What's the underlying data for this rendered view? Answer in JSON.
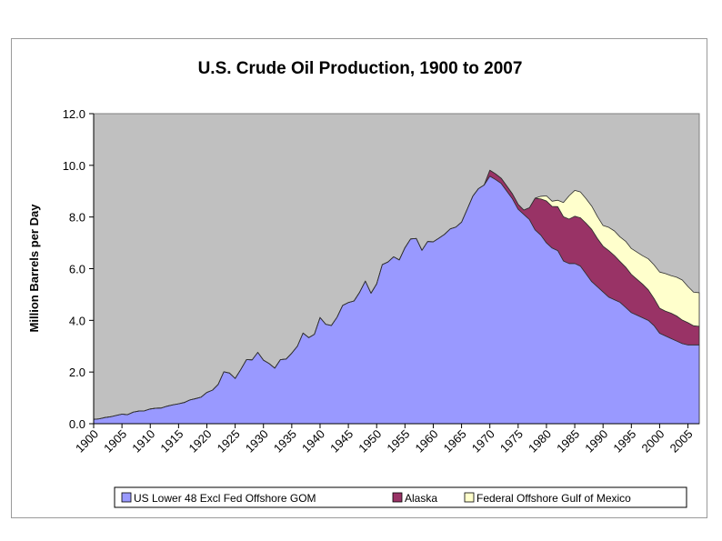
{
  "chart_data": {
    "type": "area",
    "stacked": true,
    "title": "U.S. Crude Oil Production, 1900 to 2007",
    "ylabel": "Million Barrels per Day",
    "xlabel": "",
    "ylim": [
      0,
      12
    ],
    "xlim": [
      1900,
      2007
    ],
    "yticks": [
      "0.0",
      "2.0",
      "4.0",
      "6.0",
      "8.0",
      "10.0",
      "12.0"
    ],
    "xticks": [
      "1900",
      "1905",
      "1910",
      "1915",
      "1920",
      "1925",
      "1930",
      "1935",
      "1940",
      "1945",
      "1950",
      "1955",
      "1960",
      "1965",
      "1970",
      "1975",
      "1980",
      "1985",
      "1990",
      "1995",
      "2000",
      "2005"
    ],
    "grid": false,
    "background_color": "#c0c0c0",
    "legend_position": "bottom",
    "x": [
      1900,
      1901,
      1902,
      1903,
      1904,
      1905,
      1906,
      1907,
      1908,
      1909,
      1910,
      1911,
      1912,
      1913,
      1914,
      1915,
      1916,
      1917,
      1918,
      1919,
      1920,
      1921,
      1922,
      1923,
      1924,
      1925,
      1926,
      1927,
      1928,
      1929,
      1930,
      1931,
      1932,
      1933,
      1934,
      1935,
      1936,
      1937,
      1938,
      1939,
      1940,
      1941,
      1942,
      1943,
      1944,
      1945,
      1946,
      1947,
      1948,
      1949,
      1950,
      1951,
      1952,
      1953,
      1954,
      1955,
      1956,
      1957,
      1958,
      1959,
      1960,
      1961,
      1962,
      1963,
      1964,
      1965,
      1966,
      1967,
      1968,
      1969,
      1970,
      1971,
      1972,
      1973,
      1974,
      1975,
      1976,
      1977,
      1978,
      1979,
      1980,
      1981,
      1982,
      1983,
      1984,
      1985,
      1986,
      1987,
      1988,
      1989,
      1990,
      1991,
      1992,
      1993,
      1994,
      1995,
      1996,
      1997,
      1998,
      1999,
      2000,
      2001,
      2002,
      2003,
      2004,
      2005,
      2006,
      2007
    ],
    "series": [
      {
        "name": "US Lower 48 Excl Fed Offshore GOM",
        "color": "#9999ff",
        "values": [
          0.17,
          0.19,
          0.24,
          0.27,
          0.32,
          0.37,
          0.35,
          0.45,
          0.49,
          0.5,
          0.57,
          0.6,
          0.61,
          0.68,
          0.73,
          0.77,
          0.82,
          0.92,
          0.97,
          1.03,
          1.21,
          1.3,
          1.52,
          2.01,
          1.96,
          1.75,
          2.1,
          2.48,
          2.47,
          2.76,
          2.46,
          2.33,
          2.15,
          2.48,
          2.5,
          2.73,
          3.0,
          3.51,
          3.33,
          3.46,
          4.11,
          3.85,
          3.8,
          4.12,
          4.58,
          4.69,
          4.75,
          5.09,
          5.52,
          5.05,
          5.41,
          6.16,
          6.26,
          6.46,
          6.34,
          6.81,
          7.15,
          7.17,
          6.71,
          7.05,
          7.04,
          7.18,
          7.33,
          7.54,
          7.61,
          7.8,
          8.3,
          8.81,
          9.1,
          9.24,
          9.58,
          9.45,
          9.3,
          9.0,
          8.7,
          8.3,
          8.1,
          7.9,
          7.5,
          7.3,
          7.0,
          6.8,
          6.7,
          6.3,
          6.2,
          6.2,
          6.1,
          5.8,
          5.5,
          5.3,
          5.1,
          4.9,
          4.8,
          4.7,
          4.5,
          4.3,
          4.2,
          4.1,
          4.0,
          3.8,
          3.5,
          3.4,
          3.3,
          3.2,
          3.1,
          3.05,
          3.05,
          3.05
        ]
      },
      {
        "name": "Alaska",
        "color": "#993366",
        "values": [
          0,
          0,
          0,
          0,
          0,
          0,
          0,
          0,
          0,
          0,
          0,
          0,
          0,
          0,
          0,
          0,
          0,
          0,
          0,
          0,
          0,
          0,
          0,
          0,
          0,
          0,
          0,
          0,
          0,
          0,
          0,
          0,
          0,
          0,
          0,
          0,
          0,
          0,
          0,
          0,
          0,
          0,
          0,
          0,
          0,
          0,
          0,
          0,
          0,
          0,
          0,
          0,
          0,
          0,
          0,
          0,
          0,
          0,
          0,
          0,
          0,
          0,
          0,
          0,
          0,
          0,
          0,
          0,
          0,
          0,
          0.23,
          0.22,
          0.2,
          0.2,
          0.19,
          0.19,
          0.17,
          0.46,
          1.23,
          1.4,
          1.62,
          1.61,
          1.7,
          1.71,
          1.72,
          1.83,
          1.87,
          1.96,
          2.02,
          1.87,
          1.77,
          1.8,
          1.71,
          1.58,
          1.56,
          1.48,
          1.39,
          1.3,
          1.18,
          1.05,
          0.97,
          0.96,
          0.98,
          0.97,
          0.91,
          0.86,
          0.74,
          0.72
        ]
      },
      {
        "name": "Federal Offshore Gulf of Mexico",
        "color": "#ffffcc",
        "values": [
          0,
          0,
          0,
          0,
          0,
          0,
          0,
          0,
          0,
          0,
          0,
          0,
          0,
          0,
          0,
          0,
          0,
          0,
          0,
          0,
          0,
          0,
          0,
          0,
          0,
          0,
          0,
          0,
          0,
          0,
          0,
          0,
          0,
          0,
          0,
          0,
          0,
          0,
          0,
          0,
          0,
          0,
          0,
          0,
          0,
          0,
          0,
          0,
          0,
          0,
          0,
          0,
          0,
          0,
          0,
          0,
          0,
          0,
          0,
          0,
          0,
          0,
          0,
          0,
          0,
          0,
          0,
          0,
          0,
          0,
          0,
          0,
          0,
          0,
          0,
          0,
          0,
          0,
          0,
          0.1,
          0.2,
          0.2,
          0.25,
          0.55,
          0.9,
          1.0,
          1.0,
          0.95,
          0.9,
          0.85,
          0.8,
          0.9,
          0.95,
          0.95,
          1.0,
          1.0,
          1.05,
          1.1,
          1.2,
          1.3,
          1.4,
          1.45,
          1.45,
          1.5,
          1.55,
          1.4,
          1.3,
          1.3
        ]
      }
    ]
  }
}
